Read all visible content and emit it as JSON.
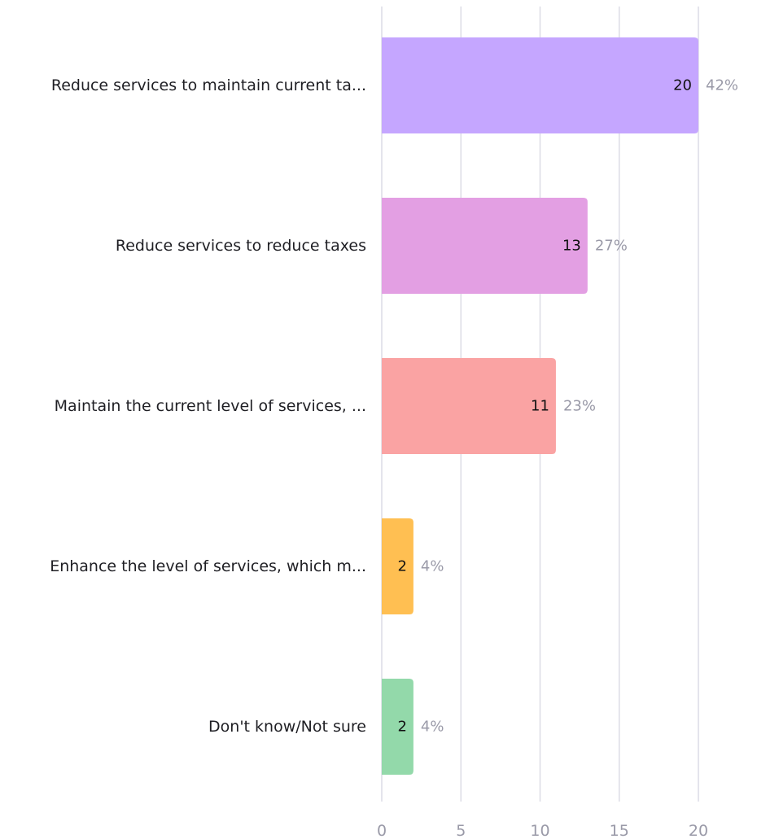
{
  "chart_data": {
    "type": "bar",
    "orientation": "horizontal",
    "categories": [
      "Reduce services to maintain current ta...",
      "Reduce services to reduce taxes",
      "Maintain the current level of services, ...",
      "Enhance the level of services, which m...",
      "Don't know/Not sure"
    ],
    "values": [
      20,
      13,
      11,
      2,
      2
    ],
    "percent_labels": [
      "42%",
      "27%",
      "23%",
      "4%",
      "4%"
    ],
    "colors": [
      "#c5a6ff",
      "#e39fe3",
      "#faa3a3",
      "#ffbf52",
      "#93d9aa"
    ],
    "xlim": [
      0,
      23.5
    ],
    "xticks": [
      0,
      5,
      10,
      15,
      20
    ],
    "xtick_labels": [
      "0",
      "5",
      "10",
      "15",
      "20"
    ],
    "grid": true,
    "title": "",
    "xlabel": "",
    "ylabel": ""
  }
}
